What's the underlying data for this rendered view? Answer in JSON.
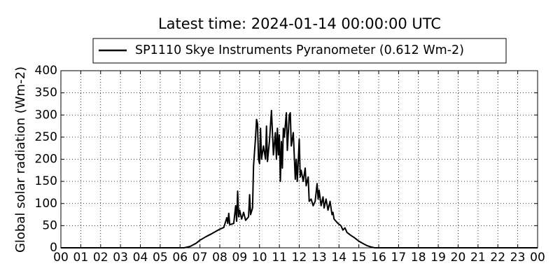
{
  "chart_data": {
    "type": "line",
    "title": "Latest time: 2024-01-14 00:00:00 UTC",
    "y_label": "Global solar radiation (Wm-2)",
    "x": [
      0,
      6.2,
      6.5,
      6.8,
      7.0,
      7.3,
      7.6,
      8.0,
      8.2,
      8.3,
      8.35,
      8.4,
      8.45,
      8.5,
      8.7,
      8.8,
      8.85,
      8.9,
      8.95,
      9.0,
      9.1,
      9.2,
      9.3,
      9.45,
      9.5,
      9.55,
      9.65,
      9.7,
      9.8,
      9.85,
      9.9,
      9.95,
      10.0,
      10.05,
      10.1,
      10.2,
      10.3,
      10.35,
      10.4,
      10.5,
      10.6,
      10.65,
      10.7,
      10.8,
      10.85,
      10.9,
      10.95,
      11.0,
      11.05,
      11.1,
      11.15,
      11.2,
      11.25,
      11.35,
      11.4,
      11.45,
      11.5,
      11.55,
      11.6,
      11.7,
      11.8,
      11.85,
      11.9,
      12.0,
      12.05,
      12.1,
      12.2,
      12.3,
      12.35,
      12.45,
      12.5,
      12.6,
      12.7,
      12.8,
      12.9,
      12.95,
      13.0,
      13.1,
      13.2,
      13.25,
      13.35,
      13.45,
      13.55,
      13.65,
      13.7,
      13.75,
      13.85,
      13.95,
      14.1,
      14.2,
      14.3,
      14.4,
      14.6,
      14.8,
      15.0,
      15.2,
      15.4,
      15.6,
      15.8,
      24
    ],
    "series": [
      {
        "name": "SP1110 Skye Instruments Pyranometer (0.612 Wm-2)",
        "color": "#000000",
        "values": [
          0,
          0,
          3,
          10,
          17,
          25,
          32,
          42,
          46,
          60,
          68,
          55,
          78,
          52,
          55,
          95,
          60,
          128,
          70,
          85,
          65,
          80,
          62,
          70,
          120,
          75,
          90,
          185,
          250,
          290,
          280,
          200,
          190,
          270,
          200,
          230,
          200,
          275,
          195,
          240,
          310,
          260,
          210,
          260,
          200,
          270,
          210,
          255,
          150,
          240,
          180,
          270,
          250,
          305,
          220,
          260,
          300,
          305,
          230,
          260,
          155,
          200,
          150,
          245,
          160,
          175,
          150,
          180,
          140,
          160,
          105,
          110,
          95,
          105,
          145,
          110,
          130,
          95,
          115,
          90,
          110,
          85,
          105,
          75,
          80,
          65,
          60,
          55,
          50,
          40,
          45,
          35,
          28,
          22,
          15,
          10,
          5,
          2,
          0,
          0
        ]
      }
    ],
    "xlim": [
      0,
      24
    ],
    "xticks": [
      {
        "value": 0,
        "label": "00"
      },
      {
        "value": 1,
        "label": "01"
      },
      {
        "value": 2,
        "label": "02"
      },
      {
        "value": 3,
        "label": "03"
      },
      {
        "value": 4,
        "label": "04"
      },
      {
        "value": 5,
        "label": "05"
      },
      {
        "value": 6,
        "label": "06"
      },
      {
        "value": 7,
        "label": "07"
      },
      {
        "value": 8,
        "label": "08"
      },
      {
        "value": 9,
        "label": "09"
      },
      {
        "value": 10,
        "label": "10"
      },
      {
        "value": 11,
        "label": "11"
      },
      {
        "value": 12,
        "label": "12"
      },
      {
        "value": 13,
        "label": "13"
      },
      {
        "value": 14,
        "label": "14"
      },
      {
        "value": 15,
        "label": "15"
      },
      {
        "value": 16,
        "label": "16"
      },
      {
        "value": 17,
        "label": "17"
      },
      {
        "value": 18,
        "label": "18"
      },
      {
        "value": 19,
        "label": "19"
      },
      {
        "value": 20,
        "label": "20"
      },
      {
        "value": 21,
        "label": "21"
      },
      {
        "value": 22,
        "label": "22"
      },
      {
        "value": 23,
        "label": "23"
      },
      {
        "value": 24,
        "label": "00"
      }
    ],
    "ylim": [
      0,
      400
    ],
    "yticks": [
      0,
      50,
      100,
      150,
      200,
      250,
      300,
      350,
      400
    ],
    "grid": true,
    "legend": "top"
  }
}
